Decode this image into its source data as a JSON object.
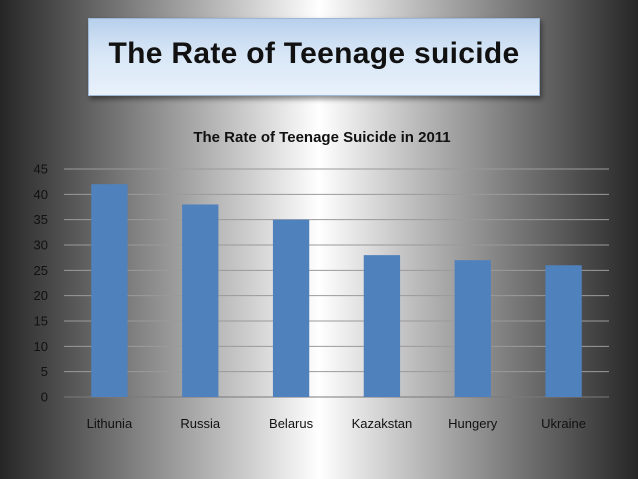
{
  "slide": {
    "title": "The Rate of Teenage suicide"
  },
  "chart_data": {
    "type": "bar",
    "title": "The Rate of Teenage Suicide in 2011",
    "xlabel": "",
    "ylabel": "",
    "categories": [
      "Lithunia",
      "Russia",
      "Belarus",
      "Kazakstan",
      "Hungery",
      "Ukraine"
    ],
    "values": [
      42,
      38,
      35,
      28,
      27,
      26
    ],
    "ylim": [
      0,
      45
    ],
    "yticks": [
      0,
      5,
      10,
      15,
      20,
      25,
      30,
      35,
      40,
      45
    ],
    "grid": true,
    "legend": "none",
    "bar_color": "#4f81bd"
  }
}
